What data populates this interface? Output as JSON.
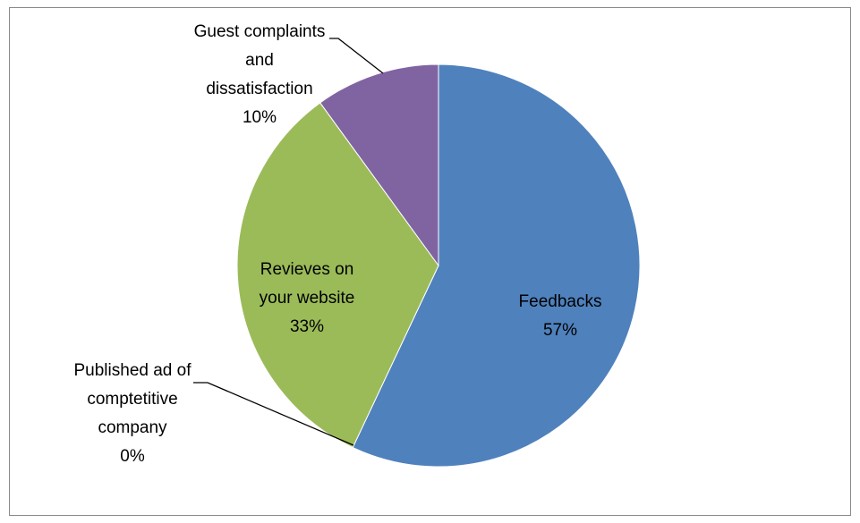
{
  "chart_data": {
    "type": "pie",
    "categories": [
      "Feedbacks",
      "Published ad of comptetitive company",
      "Revieves on your website",
      "Guest complaints and dissatisfaction"
    ],
    "values": [
      57,
      0,
      33,
      10
    ],
    "value_labels": [
      "57%",
      "0%",
      "33%",
      "10%"
    ],
    "colors": [
      "#4f81bd",
      "#c0504d",
      "#9bbb59",
      "#8064a2"
    ]
  }
}
